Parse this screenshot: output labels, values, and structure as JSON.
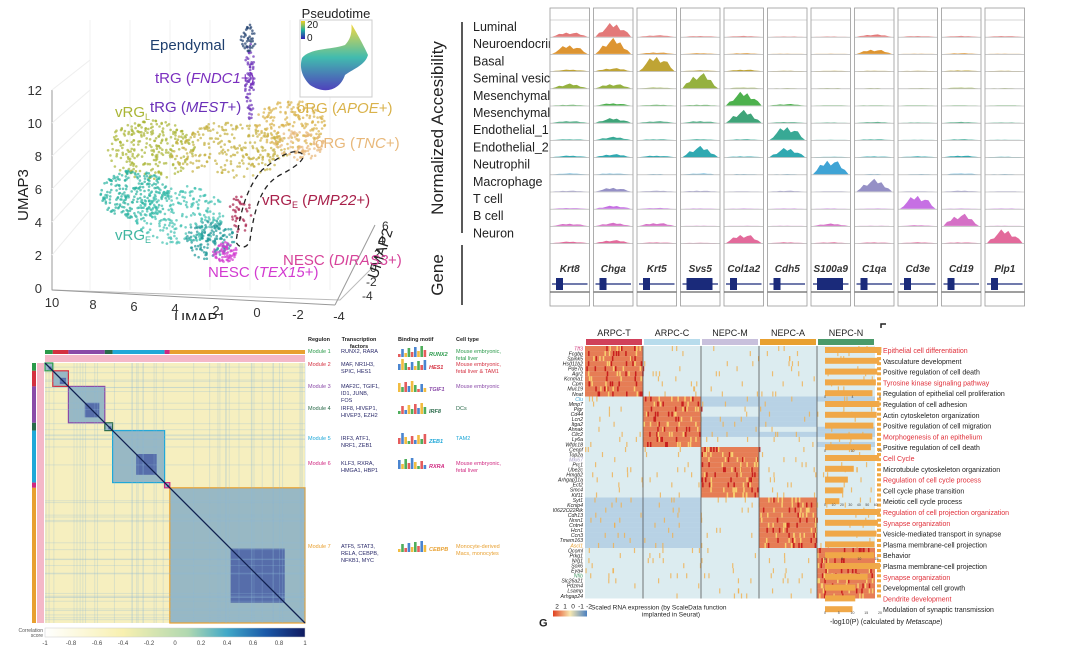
{
  "umap": {
    "inset_title": "Pseudotime",
    "inset_scale": {
      "max": "20",
      "min": "0"
    },
    "axes": {
      "x_label": "UMAP1",
      "y_label": "UMAP2",
      "z_label": "UMAP3",
      "x_ticks": [
        "10",
        "8",
        "6",
        "4",
        "2",
        "0",
        "-2",
        "-4"
      ],
      "y_ticks": [
        "6",
        "4",
        "2",
        "0",
        "-2",
        "-4"
      ],
      "z_ticks": [
        "12",
        "10",
        "8",
        "6",
        "4",
        "2",
        "0"
      ]
    },
    "clusters": [
      {
        "name": "Ependymal",
        "gene": "",
        "color": "#1f3f6e"
      },
      {
        "name": "tRG",
        "gene": "FNDC1+",
        "color": "#7b2fbf"
      },
      {
        "name": "tRG",
        "gene": "MEST+",
        "color": "#6a2fb8"
      },
      {
        "name": "vRG",
        "sub": "L",
        "gene": "",
        "color": "#a9b534"
      },
      {
        "name": "oRG",
        "gene": "APOE+",
        "color": "#d9b24a"
      },
      {
        "name": "oRG",
        "gene": "TNC+",
        "color": "#e8b87a"
      },
      {
        "name": "vRG",
        "sub": "E",
        "gene": "PMP22+",
        "color": "#a8204a"
      },
      {
        "name": "vRG",
        "sub": "E",
        "gene": "",
        "color": "#3fb5a0"
      },
      {
        "name": "NESC",
        "gene": "DIRAS3+",
        "color": "#d6439a"
      },
      {
        "name": "NESC",
        "gene": "TEX15+",
        "color": "#d23ad0"
      }
    ]
  },
  "atac": {
    "y_label_top": "Normalized Accesibility",
    "y_label_bottom": "Gene",
    "cell_types": [
      {
        "name": "Luminal",
        "color": "#e06a6a"
      },
      {
        "name": "Neuroendocrine",
        "color": "#d98a1c"
      },
      {
        "name": "Basal",
        "color": "#b89a1e"
      },
      {
        "name": "Seminal vesicle",
        "color": "#8aa82a"
      },
      {
        "name": "Mesenchymal_1",
        "color": "#3aa83a"
      },
      {
        "name": "Mesenchymal_2",
        "color": "#2a9a6a"
      },
      {
        "name": "Endothelial_1",
        "color": "#22a08a"
      },
      {
        "name": "Endothelial_2",
        "color": "#1aa0a8"
      },
      {
        "name": "Neutrophil",
        "color": "#2a9ad0"
      },
      {
        "name": "Macrophage",
        "color": "#8a84c0"
      },
      {
        "name": "T cell",
        "color": "#c060e0"
      },
      {
        "name": "B cell",
        "color": "#d060c0"
      },
      {
        "name": "Neuron",
        "color": "#e05a90"
      }
    ],
    "genes": [
      "Krt8",
      "Chga",
      "Krt5",
      "Svs5",
      "Col1a2",
      "Cdh5",
      "S100a9",
      "C1qa",
      "Cd3e",
      "Cd19",
      "Plp1"
    ],
    "peak_matrix": [
      [
        0.3,
        0.9,
        0.1,
        0.05,
        0.05,
        0.02,
        0.02,
        0.15,
        0.05,
        0.05,
        0.05
      ],
      [
        0.6,
        1.0,
        0.1,
        0.05,
        0.05,
        0.02,
        0.02,
        0.3,
        0.02,
        0.05,
        0.02
      ],
      [
        0.1,
        0.2,
        1.0,
        0.05,
        0.1,
        0.02,
        0.02,
        0.02,
        0.02,
        0.05,
        0.02
      ],
      [
        0.3,
        0.3,
        0.05,
        1.0,
        0.05,
        0.02,
        0.02,
        0.02,
        0.02,
        0.05,
        0.02
      ],
      [
        0.05,
        0.15,
        0.05,
        0.05,
        0.9,
        0.1,
        0.02,
        0.02,
        0.02,
        0.02,
        0.02
      ],
      [
        0.1,
        0.3,
        0.1,
        0.1,
        0.8,
        0.05,
        0.02,
        0.05,
        0.02,
        0.05,
        0.02
      ],
      [
        0.05,
        0.2,
        0.05,
        0.05,
        0.05,
        0.9,
        0.02,
        0.05,
        0.02,
        0.05,
        0.02
      ],
      [
        0.1,
        0.2,
        0.1,
        0.7,
        0.05,
        0.6,
        0.02,
        0.05,
        0.05,
        0.1,
        0.02
      ],
      [
        0.05,
        0.05,
        0.02,
        0.05,
        0.02,
        0.02,
        1.0,
        0.02,
        0.02,
        0.05,
        0.02
      ],
      [
        0.05,
        0.25,
        0.05,
        0.05,
        0.02,
        0.05,
        0.02,
        0.8,
        0.02,
        0.05,
        0.02
      ],
      [
        0.05,
        0.2,
        0.05,
        0.02,
        0.02,
        0.02,
        0.02,
        0.02,
        0.9,
        0.02,
        0.02
      ],
      [
        0.15,
        0.2,
        0.2,
        0.02,
        0.02,
        0.02,
        0.15,
        0.02,
        0.05,
        0.8,
        0.02
      ],
      [
        0.1,
        0.2,
        0.05,
        0.02,
        0.6,
        0.05,
        0.05,
        0.05,
        0.05,
        0.05,
        0.9
      ]
    ]
  },
  "regulon": {
    "headers": [
      "Regulon",
      "Transcription factors",
      "Binding motif",
      "Cell type"
    ],
    "modules": [
      {
        "name": "Module 1",
        "tfs": "RUNX2, RARA",
        "motif": "RUNX2",
        "cell_type": "Mouse embryonic, fetal liver",
        "color": "#2a9a4a",
        "frac": 0.03
      },
      {
        "name": "Module 2",
        "tfs": "MAF, NR1H3, SPIC, HES1",
        "motif": "HES1",
        "cell_type": "Mouse embryonic, fetal liver & TAM1",
        "color": "#d43040",
        "frac": 0.06
      },
      {
        "name": "Module 3",
        "tfs": "MAF2C, TGIF1, ID1, JUNB, FOS",
        "motif": "TGIF1",
        "cell_type": "Mouse embryonic",
        "color": "#8a4aa8",
        "frac": 0.14
      },
      {
        "name": "Module 4",
        "tfs": "IRF8, HIVEP1, HIVEP3, EZH2",
        "motif": "IRF8",
        "cell_type": "DCs",
        "color": "#2a6a4a",
        "frac": 0.03
      },
      {
        "name": "Module 5",
        "tfs": "IRF3, ATF1, NRF1, ZEB1",
        "motif": "ZEB1",
        "cell_type": "TAM2",
        "color": "#20a8d8",
        "frac": 0.2
      },
      {
        "name": "Module 6",
        "tfs": "KLF3, RXRA, HMGA1, HBP1",
        "motif": "RXRA",
        "cell_type": "Mouse embryonic, fetal liver",
        "color": "#d02880",
        "frac": 0.02
      },
      {
        "name": "Module 7",
        "tfs": "ATF5, STAT3, RELA, CEBPB, NFKB1, MYC",
        "motif": "CEBPB",
        "cell_type": "Monocyte-derived Macs, monocytes",
        "color": "#e8a030",
        "frac": 0.52
      }
    ],
    "colorbar": {
      "label": "Correlation score",
      "ticks": [
        "-1",
        "-0.8",
        "-0.6",
        "-0.4",
        "-0.2",
        "0",
        "0.2",
        "0.4",
        "0.6",
        "0.8",
        "1"
      ]
    }
  },
  "rna": {
    "groups": [
      {
        "name": "ARPC-T",
        "color": "#d0405a"
      },
      {
        "name": "ARPC-C",
        "color": "#b8dcec"
      },
      {
        "name": "NEPC-M",
        "color": "#c8c0dc"
      },
      {
        "name": "NEPC-A",
        "color": "#e8a030"
      },
      {
        "name": "NEPC-N",
        "color": "#4a9a6a"
      }
    ],
    "gene_blocks": [
      {
        "high": 0,
        "genes": [
          {
            "n": "Tff3",
            "c": "#d04080"
          },
          {
            "n": "Fcgbp"
          },
          {
            "n": "Spink5"
          },
          {
            "n": "Hsd11b2"
          },
          {
            "n": "Pde7b"
          },
          {
            "n": "Agr2"
          },
          {
            "n": "Kcnma1"
          },
          {
            "n": "Cpm"
          },
          {
            "n": "Muc19"
          },
          {
            "n": "Nnat"
          }
        ]
      },
      {
        "high": 1,
        "genes": [
          {
            "n": "Clu",
            "c": "#3aa0d0"
          },
          {
            "n": "Mmp7"
          },
          {
            "n": "Pigr"
          },
          {
            "n": "Cd44"
          },
          {
            "n": "Lcn2"
          },
          {
            "n": "Itga2"
          },
          {
            "n": "Ahnak"
          },
          {
            "n": "Clic2"
          },
          {
            "n": "Ly6a"
          },
          {
            "n": "Wfdc18"
          }
        ]
      },
      {
        "high": 2,
        "genes": [
          {
            "n": "Cenpf"
          },
          {
            "n": "Top2a"
          },
          {
            "n": "Mki67",
            "c": "#a8a0c8"
          },
          {
            "n": "Prc1"
          },
          {
            "n": "Ube2c"
          },
          {
            "n": "Hmgb2"
          },
          {
            "n": "Arhgap11a"
          },
          {
            "n": "Ect2"
          },
          {
            "n": "Smc4"
          },
          {
            "n": "Kif11"
          }
        ]
      },
      {
        "high": 3,
        "genes": [
          {
            "n": "Syt1"
          },
          {
            "n": "Kcnip4"
          },
          {
            "n": "I0622O22Rik"
          },
          {
            "n": "Cdh13"
          },
          {
            "n": "Nrxn1"
          },
          {
            "n": "Cntn4"
          },
          {
            "n": "Hcn1"
          },
          {
            "n": "Ccn3"
          },
          {
            "n": "Tmem163"
          },
          {
            "n": "Ascl1",
            "c": "#e8a030"
          }
        ]
      },
      {
        "high": 4,
        "genes": [
          {
            "n": "Ocoml"
          },
          {
            "n": "Prkg1"
          },
          {
            "n": "Nrg1"
          },
          {
            "n": "Sox6"
          },
          {
            "n": "Eya4"
          },
          {
            "n": "Nfib",
            "c": "#4a9a6a"
          },
          {
            "n": "Slc26a21"
          },
          {
            "n": "Pdzm4"
          },
          {
            "n": "Lsamp"
          },
          {
            "n": "Arhgap24"
          }
        ]
      }
    ],
    "legend": {
      "ticks": [
        "2",
        "1",
        "0",
        "-1",
        "-2"
      ],
      "label_line1": "Scaled RNA expression (by ScaleData function",
      "label_line2": "implanted in Seurat)",
      "panel_letter": "G"
    },
    "go_terms": [
      {
        "block": 0,
        "axis": [
          "0",
          "4",
          "8"
        ],
        "max": 8,
        "terms": [
          {
            "t": "Epithelial cell differentiation",
            "v": 8.2,
            "hl": true
          },
          {
            "t": "Vasculature development",
            "v": 7.9
          },
          {
            "t": "Positive regulation of cell death",
            "v": 7.6
          },
          {
            "t": "Tyrosine kinase signaling pathway",
            "v": 7.4,
            "hl": true
          },
          {
            "t": "Regulation of epithelial cell proliferation",
            "v": 6.9
          }
        ]
      },
      {
        "block": 1,
        "axis": [
          "0",
          "10",
          "20"
        ],
        "max": 20,
        "terms": [
          {
            "t": "Regulation of cell adhesion",
            "v": 19.8
          },
          {
            "t": "Actin cytoskeleton organization",
            "v": 18.8
          },
          {
            "t": "Positive regulation of cell migration",
            "v": 17.6
          },
          {
            "t": "Morphogenesis of an epithelium",
            "v": 17.2,
            "hl": true
          },
          {
            "t": "Positive regulation of cell death",
            "v": 16.7
          }
        ]
      },
      {
        "block": 2,
        "axis": [
          "0",
          "10",
          "20",
          "30",
          "40",
          "50",
          "60"
        ],
        "max": 65,
        "terms": [
          {
            "t": "Cell Cycle",
            "v": 64,
            "hl": true
          },
          {
            "t": "Microtubule cytoskeleton organization",
            "v": 34
          },
          {
            "t": "Regulation of cell cycle process",
            "v": 27,
            "hl": true
          },
          {
            "t": "Cell cycle phase transition",
            "v": 21
          },
          {
            "t": "Meiotic cell cycle process",
            "v": 17
          }
        ]
      },
      {
        "block": 3,
        "axis": [
          "0",
          "5",
          "10",
          "15"
        ],
        "max": 16,
        "terms": [
          {
            "t": "Regulation of cell projection organization",
            "v": 16,
            "hl": true
          },
          {
            "t": "Synapse organization",
            "v": 15.4,
            "hl": true
          },
          {
            "t": "Vesicle-mediated transport in synapse",
            "v": 15
          },
          {
            "t": "Plasma membrane-cell projection",
            "v": 14.4
          },
          {
            "t": "Behavior",
            "v": 14.3
          }
        ]
      },
      {
        "block": 4,
        "axis": [
          "0",
          "5",
          "10",
          "15",
          "20"
        ],
        "max": 20,
        "terms": [
          {
            "t": "Plasma membrane-cell projection",
            "v": 20
          },
          {
            "t": "Synapse organization",
            "v": 15.5,
            "hl": true
          },
          {
            "t": "Developmental cell growth",
            "v": 11
          },
          {
            "t": "Dendrite development",
            "v": 11,
            "hl": true
          },
          {
            "t": "Modulation of synaptic transmission",
            "v": 10
          }
        ]
      }
    ],
    "go_axis_label_pre": "-log10(P) (calculated by ",
    "go_axis_label_em": "Metascape",
    "go_axis_label_post": ")",
    "hl_color": "#e0303a"
  }
}
